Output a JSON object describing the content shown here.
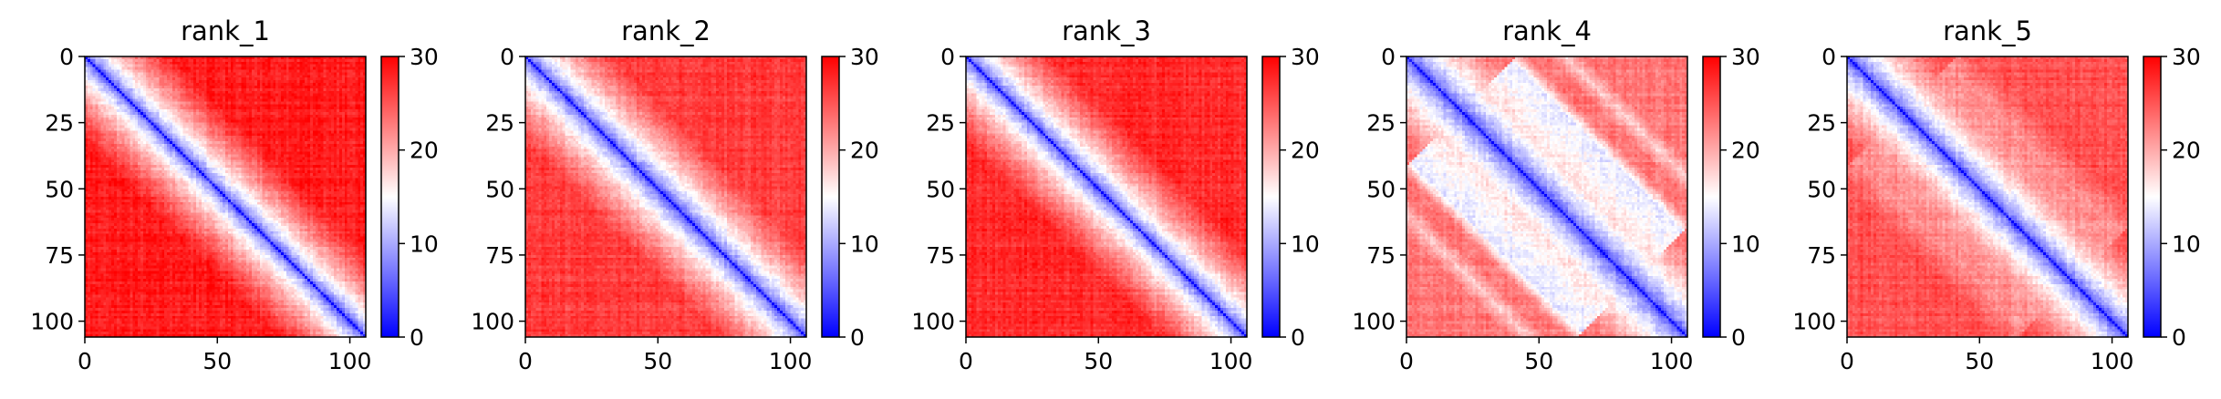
{
  "colors": {
    "low": "#0000ff",
    "mid": "#ffffff",
    "high": "#ff0000",
    "axis": "#000000"
  },
  "chart_data": [
    {
      "type": "heatmap",
      "title": "rank_1",
      "x_ticks": [
        0,
        50,
        100
      ],
      "y_ticks": [
        0,
        25,
        50,
        75,
        100
      ],
      "xlim": [
        0,
        106
      ],
      "ylim": [
        106,
        0
      ],
      "colorbar": {
        "range": [
          0,
          30
        ],
        "ticks": [
          0,
          10,
          20,
          30
        ],
        "colormap": "bwr"
      },
      "size": 106
    },
    {
      "type": "heatmap",
      "title": "rank_2",
      "x_ticks": [
        0,
        50,
        100
      ],
      "y_ticks": [
        0,
        25,
        50,
        75,
        100
      ],
      "xlim": [
        0,
        106
      ],
      "ylim": [
        106,
        0
      ],
      "colorbar": {
        "range": [
          0,
          30
        ],
        "ticks": [
          0,
          10,
          20,
          30
        ],
        "colormap": "bwr"
      },
      "size": 106
    },
    {
      "type": "heatmap",
      "title": "rank_3",
      "x_ticks": [
        0,
        50,
        100
      ],
      "y_ticks": [
        0,
        25,
        50,
        75,
        100
      ],
      "xlim": [
        0,
        106
      ],
      "ylim": [
        106,
        0
      ],
      "colorbar": {
        "range": [
          0,
          30
        ],
        "ticks": [
          0,
          10,
          20,
          30
        ],
        "colormap": "bwr"
      },
      "size": 106
    },
    {
      "type": "heatmap",
      "title": "rank_4",
      "x_ticks": [
        0,
        50,
        100
      ],
      "y_ticks": [
        0,
        25,
        50,
        75,
        100
      ],
      "xlim": [
        0,
        106
      ],
      "ylim": [
        106,
        0
      ],
      "colorbar": {
        "range": [
          0,
          30
        ],
        "ticks": [
          0,
          10,
          20,
          30
        ],
        "colormap": "bwr"
      },
      "size": 106
    },
    {
      "type": "heatmap",
      "title": "rank_5",
      "x_ticks": [
        0,
        50,
        100
      ],
      "y_ticks": [
        0,
        25,
        50,
        75,
        100
      ],
      "xlim": [
        0,
        106
      ],
      "ylim": [
        106,
        0
      ],
      "colorbar": {
        "range": [
          0,
          30
        ],
        "ticks": [
          0,
          10,
          20,
          30
        ],
        "colormap": "bwr"
      },
      "size": 106
    }
  ]
}
